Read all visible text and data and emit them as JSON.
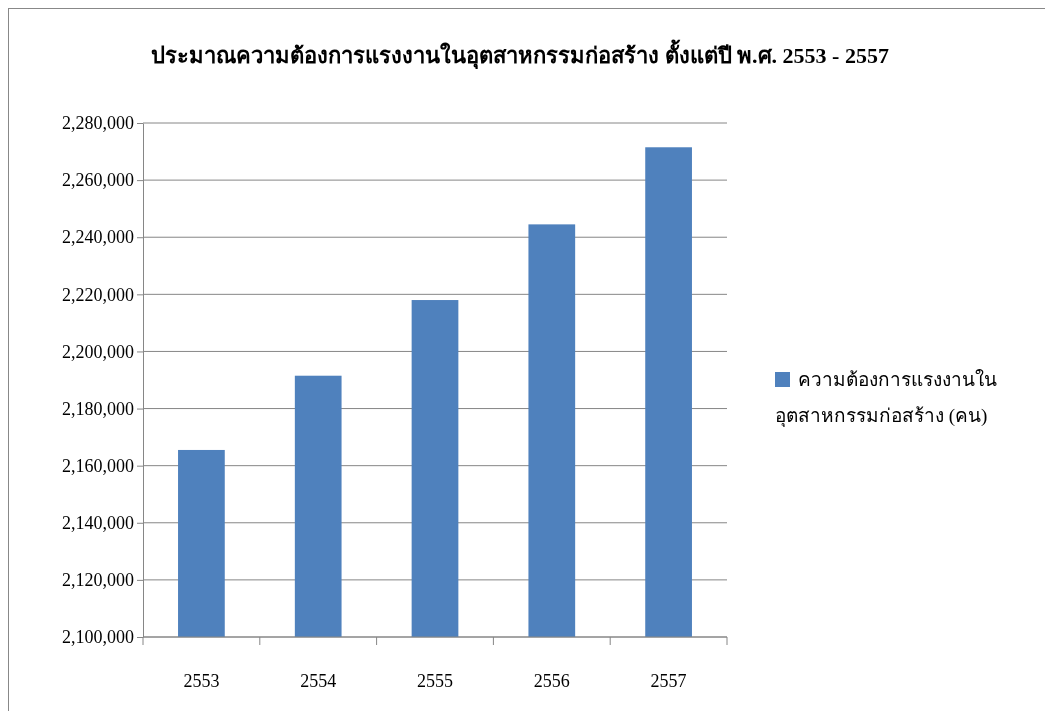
{
  "chart_data": {
    "type": "bar",
    "title": "ประมาณความต้องการแรงงานในอุตสาหกรรมก่อสร้าง ตั้งแต่ปี พ.ศ. 2553 - 2557",
    "categories": [
      "2553",
      "2554",
      "2555",
      "2556",
      "2557"
    ],
    "series": [
      {
        "name": "ความต้องการแรงงานในอุตสาหกรรมก่อสร้าง (คน)",
        "color": "#4f81bd",
        "values": [
          2165500,
          2191500,
          2218000,
          2244500,
          2271500
        ]
      }
    ],
    "ylim": [
      2100000,
      2280000
    ],
    "yticks": [
      {
        "value": 2100000,
        "label": "2,100,000"
      },
      {
        "value": 2120000,
        "label": "2,120,000"
      },
      {
        "value": 2140000,
        "label": "2,140,000"
      },
      {
        "value": 2160000,
        "label": "2,160,000"
      },
      {
        "value": 2180000,
        "label": "2,180,000"
      },
      {
        "value": 2200000,
        "label": "2,200,000"
      },
      {
        "value": 2220000,
        "label": "2,220,000"
      },
      {
        "value": 2240000,
        "label": "2,240,000"
      },
      {
        "value": 2260000,
        "label": "2,260,000"
      },
      {
        "value": 2280000,
        "label": "2,280,000"
      }
    ],
    "grid": "y",
    "legend": "right"
  }
}
